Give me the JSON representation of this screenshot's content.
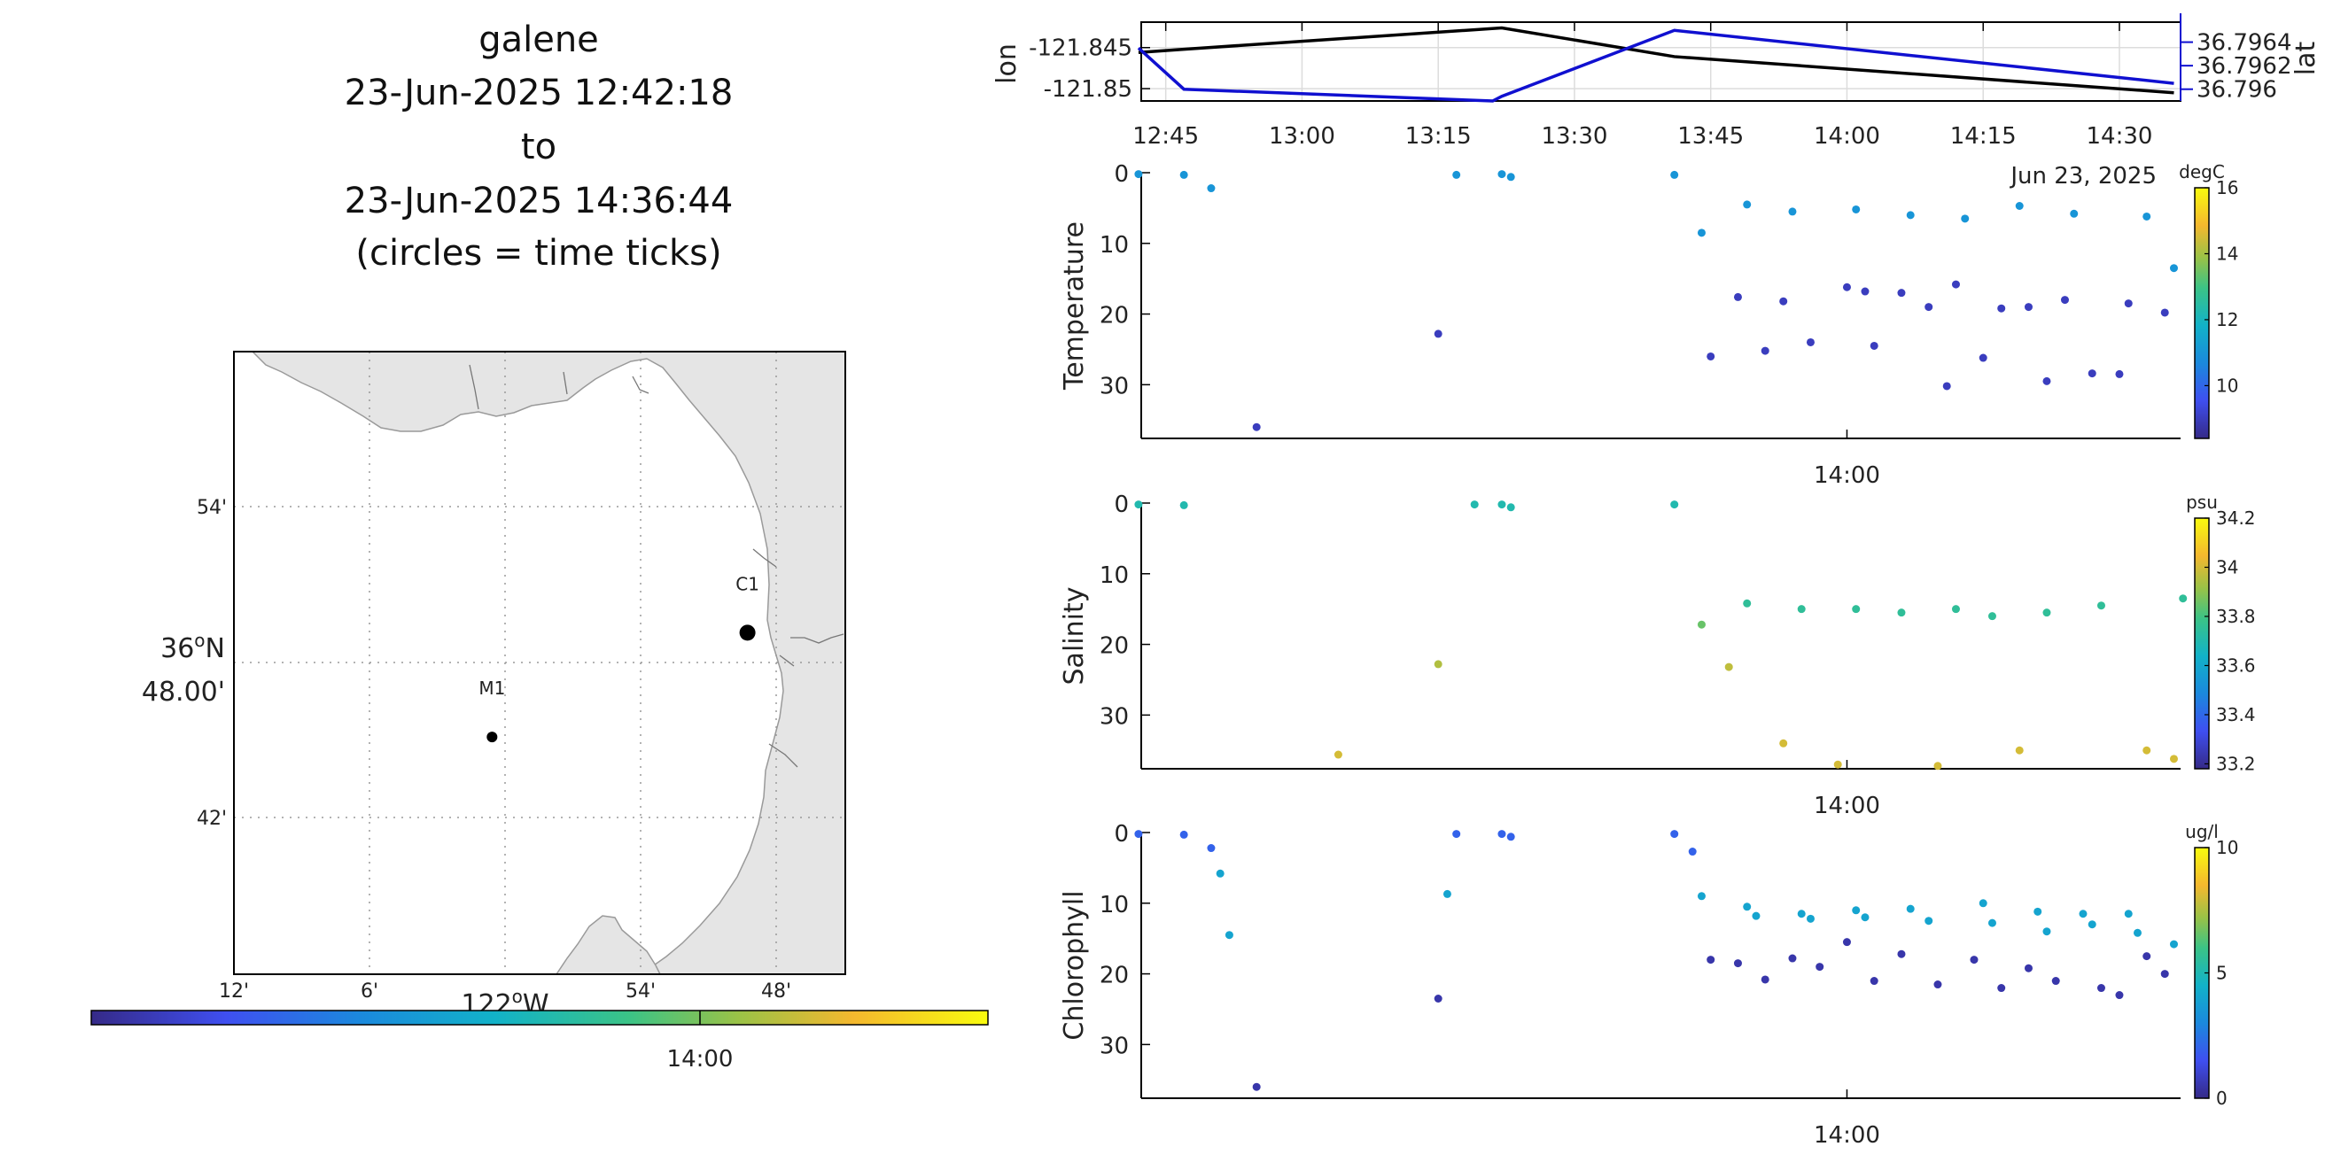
{
  "title": {
    "lines": [
      "galene",
      "23-Jun-2025 12:42:18",
      "to",
      "23-Jun-2025 14:36:44",
      "(circles = time ticks)"
    ]
  },
  "map": {
    "lon_ticks": [
      "12'",
      "6'",
      "54'",
      "48'"
    ],
    "lon_degree_label": "122",
    "lon_degree_suffix": "W",
    "lat_ticks": [
      "54'",
      "42'"
    ],
    "lat_degree_label": "36",
    "lat_degree_suffix": "N",
    "lat_minutes_label": "48.00'",
    "stations": [
      {
        "name": "M1",
        "lon": -122.01,
        "lat": 36.747
      },
      {
        "name": "C1",
        "lon": -121.822,
        "lat": 36.797
      }
    ],
    "colorbar_tick": "14:00",
    "colors": {
      "land": "#e5e5e5",
      "coast": "#9a9a9a",
      "grid": "#9a9a9a"
    }
  },
  "track_chart": {
    "type": "line",
    "left_axis": {
      "label": "lon",
      "ticks": [
        "-121.845",
        "-121.85"
      ],
      "range": [
        -121.8515,
        -121.8419
      ]
    },
    "right_axis": {
      "label": "lat",
      "ticks": [
        "36.7964",
        "36.7962",
        "36.796"
      ],
      "range": [
        36.7959,
        36.79657
      ]
    },
    "x_ticks": [
      "12:45",
      "13:00",
      "13:15",
      "13:30",
      "13:45",
      "14:00",
      "14:15",
      "14:30"
    ],
    "x_date_label": "Jun 23, 2025",
    "lon_series": [
      {
        "t": "12:42",
        "v": -121.8456
      },
      {
        "t": "12:47",
        "v": -121.8452
      },
      {
        "t": "13:22",
        "v": -121.8426
      },
      {
        "t": "13:41",
        "v": -121.8461
      },
      {
        "t": "14:36",
        "v": -121.8505
      }
    ],
    "lat_series": [
      {
        "t": "12:42",
        "v": 36.79635
      },
      {
        "t": "12:47",
        "v": 36.796
      },
      {
        "t": "13:21",
        "v": 36.7959
      },
      {
        "t": "13:22",
        "v": 36.79594
      },
      {
        "t": "13:41",
        "v": 36.7965
      },
      {
        "t": "14:36",
        "v": 36.79605
      }
    ],
    "colors": {
      "lon": "#000000",
      "lat": "#1010d0"
    }
  },
  "chart_data": [
    {
      "type": "scatter",
      "ylabel": "Temperature",
      "units": "degC",
      "x_tick": "14:00",
      "y_ticks": [
        "0",
        "10",
        "20",
        "30"
      ],
      "ylim": [
        37.6,
        0
      ],
      "cbar_ticks": [
        "16",
        "14",
        "12",
        "10"
      ],
      "cbar_range": [
        8.4,
        16
      ],
      "points": [
        {
          "t": "12:42",
          "d": 0.2,
          "v": 11
        },
        {
          "t": "12:47",
          "d": 0.3,
          "v": 11
        },
        {
          "t": "12:50",
          "d": 2.2,
          "v": 11
        },
        {
          "t": "12:55",
          "d": 36,
          "v": 9
        },
        {
          "t": "13:15",
          "d": 22.8,
          "v": 9
        },
        {
          "t": "13:17",
          "d": 0.3,
          "v": 11
        },
        {
          "t": "13:22",
          "d": 0.2,
          "v": 11
        },
        {
          "t": "13:23",
          "d": 0.6,
          "v": 11
        },
        {
          "t": "13:41",
          "d": 0.3,
          "v": 11
        },
        {
          "t": "13:44",
          "d": 8.5,
          "v": 11
        },
        {
          "t": "13:45",
          "d": 26,
          "v": 9
        },
        {
          "t": "13:48",
          "d": 17.6,
          "v": 9
        },
        {
          "t": "13:49",
          "d": 4.5,
          "v": 11
        },
        {
          "t": "13:51",
          "d": 25.2,
          "v": 9
        },
        {
          "t": "13:53",
          "d": 18.2,
          "v": 9
        },
        {
          "t": "13:54",
          "d": 5.5,
          "v": 11
        },
        {
          "t": "13:56",
          "d": 24,
          "v": 9
        },
        {
          "t": "14:00",
          "d": 16.2,
          "v": 9
        },
        {
          "t": "14:01",
          "d": 5.2,
          "v": 11
        },
        {
          "t": "14:02",
          "d": 16.8,
          "v": 9
        },
        {
          "t": "14:03",
          "d": 24.5,
          "v": 9
        },
        {
          "t": "14:06",
          "d": 17,
          "v": 9
        },
        {
          "t": "14:07",
          "d": 6,
          "v": 11
        },
        {
          "t": "14:09",
          "d": 19,
          "v": 9
        },
        {
          "t": "14:11",
          "d": 30.2,
          "v": 9
        },
        {
          "t": "14:12",
          "d": 15.8,
          "v": 9
        },
        {
          "t": "14:13",
          "d": 6.5,
          "v": 11
        },
        {
          "t": "14:15",
          "d": 26.2,
          "v": 9
        },
        {
          "t": "14:17",
          "d": 19.2,
          "v": 9
        },
        {
          "t": "14:19",
          "d": 4.7,
          "v": 11
        },
        {
          "t": "14:20",
          "d": 19,
          "v": 9
        },
        {
          "t": "14:22",
          "d": 29.5,
          "v": 9
        },
        {
          "t": "14:24",
          "d": 18,
          "v": 9
        },
        {
          "t": "14:25",
          "d": 5.8,
          "v": 11
        },
        {
          "t": "14:27",
          "d": 28.4,
          "v": 9
        },
        {
          "t": "14:30",
          "d": 28.5,
          "v": 9
        },
        {
          "t": "14:31",
          "d": 18.5,
          "v": 9
        },
        {
          "t": "14:33",
          "d": 6.2,
          "v": 11
        },
        {
          "t": "14:35",
          "d": 19.8,
          "v": 9
        },
        {
          "t": "14:36",
          "d": 13.5,
          "v": 11
        }
      ]
    },
    {
      "type": "scatter",
      "ylabel": "Salinity",
      "units": "psu",
      "x_tick": "14:00",
      "y_ticks": [
        "0",
        "10",
        "20",
        "30"
      ],
      "ylim": [
        37.6,
        0
      ],
      "cbar_ticks": [
        "34.2",
        "34",
        "33.8",
        "33.6",
        "33.4",
        "33.2"
      ],
      "cbar_range": [
        33.18,
        34.2
      ],
      "points": [
        {
          "t": "12:42",
          "d": 0.2,
          "v": 33.7
        },
        {
          "t": "12:47",
          "d": 0.3,
          "v": 33.7
        },
        {
          "t": "13:04",
          "d": 35.6,
          "v": 34.0
        },
        {
          "t": "13:15",
          "d": 22.8,
          "v": 33.95
        },
        {
          "t": "13:19",
          "d": 0.2,
          "v": 33.7
        },
        {
          "t": "13:22",
          "d": 0.2,
          "v": 33.7
        },
        {
          "t": "13:23",
          "d": 0.6,
          "v": 33.7
        },
        {
          "t": "13:41",
          "d": 0.2,
          "v": 33.7
        },
        {
          "t": "13:44",
          "d": 17.2,
          "v": 33.85
        },
        {
          "t": "13:47",
          "d": 23.2,
          "v": 33.97
        },
        {
          "t": "13:49",
          "d": 14.2,
          "v": 33.75
        },
        {
          "t": "13:53",
          "d": 34,
          "v": 34.0
        },
        {
          "t": "13:55",
          "d": 15,
          "v": 33.75
        },
        {
          "t": "13:59",
          "d": 37,
          "v": 34.0
        },
        {
          "t": "14:01",
          "d": 15,
          "v": 33.75
        },
        {
          "t": "14:06",
          "d": 15.5,
          "v": 33.75
        },
        {
          "t": "14:10",
          "d": 37.2,
          "v": 34.0
        },
        {
          "t": "14:12",
          "d": 15,
          "v": 33.75
        },
        {
          "t": "14:16",
          "d": 16,
          "v": 33.75
        },
        {
          "t": "14:19",
          "d": 35,
          "v": 34.0
        },
        {
          "t": "14:22",
          "d": 15.5,
          "v": 33.75
        },
        {
          "t": "14:28",
          "d": 14.5,
          "v": 33.75
        },
        {
          "t": "14:33",
          "d": 35,
          "v": 34.0
        },
        {
          "t": "14:36",
          "d": 36.2,
          "v": 34.0
        },
        {
          "t": "14:37",
          "d": 13.5,
          "v": 33.75
        }
      ]
    },
    {
      "type": "scatter",
      "ylabel": "Chlorophyll",
      "units": "ug/l",
      "x_tick": "14:00",
      "y_ticks": [
        "0",
        "10",
        "20",
        "30"
      ],
      "ylim": [
        37.6,
        0
      ],
      "cbar_ticks": [
        "10",
        "5",
        "0"
      ],
      "cbar_range": [
        0,
        10
      ],
      "points": [
        {
          "t": "12:42",
          "d": 0.2,
          "v": 2
        },
        {
          "t": "12:47",
          "d": 0.3,
          "v": 2
        },
        {
          "t": "12:50",
          "d": 2.2,
          "v": 2
        },
        {
          "t": "12:51",
          "d": 5.8,
          "v": 4
        },
        {
          "t": "12:52",
          "d": 14.5,
          "v": 4
        },
        {
          "t": "12:55",
          "d": 36,
          "v": 0.5
        },
        {
          "t": "13:15",
          "d": 23.5,
          "v": 0.5
        },
        {
          "t": "13:16",
          "d": 8.7,
          "v": 4
        },
        {
          "t": "13:17",
          "d": 0.2,
          "v": 2
        },
        {
          "t": "13:22",
          "d": 0.2,
          "v": 2
        },
        {
          "t": "13:23",
          "d": 0.6,
          "v": 2
        },
        {
          "t": "13:41",
          "d": 0.2,
          "v": 2
        },
        {
          "t": "13:43",
          "d": 2.7,
          "v": 2
        },
        {
          "t": "13:44",
          "d": 9,
          "v": 4
        },
        {
          "t": "13:45",
          "d": 18,
          "v": 0.5
        },
        {
          "t": "13:48",
          "d": 18.5,
          "v": 0.5
        },
        {
          "t": "13:49",
          "d": 10.5,
          "v": 4
        },
        {
          "t": "13:50",
          "d": 11.8,
          "v": 4
        },
        {
          "t": "13:51",
          "d": 20.8,
          "v": 0.5
        },
        {
          "t": "13:54",
          "d": 17.8,
          "v": 0.5
        },
        {
          "t": "13:55",
          "d": 11.5,
          "v": 4
        },
        {
          "t": "13:56",
          "d": 12.2,
          "v": 4
        },
        {
          "t": "13:57",
          "d": 19,
          "v": 0.5
        },
        {
          "t": "14:00",
          "d": 15.5,
          "v": 0.5
        },
        {
          "t": "14:01",
          "d": 11,
          "v": 4
        },
        {
          "t": "14:02",
          "d": 12,
          "v": 4
        },
        {
          "t": "14:03",
          "d": 21,
          "v": 0.5
        },
        {
          "t": "14:06",
          "d": 17.2,
          "v": 0.5
        },
        {
          "t": "14:07",
          "d": 10.8,
          "v": 4
        },
        {
          "t": "14:09",
          "d": 12.5,
          "v": 4
        },
        {
          "t": "14:10",
          "d": 21.5,
          "v": 0.5
        },
        {
          "t": "14:14",
          "d": 18,
          "v": 0.5
        },
        {
          "t": "14:15",
          "d": 10,
          "v": 4
        },
        {
          "t": "14:16",
          "d": 12.8,
          "v": 4
        },
        {
          "t": "14:17",
          "d": 22,
          "v": 0.5
        },
        {
          "t": "14:20",
          "d": 19.2,
          "v": 0.5
        },
        {
          "t": "14:21",
          "d": 11.2,
          "v": 4
        },
        {
          "t": "14:22",
          "d": 14,
          "v": 4
        },
        {
          "t": "14:23",
          "d": 21,
          "v": 0.5
        },
        {
          "t": "14:26",
          "d": 11.5,
          "v": 4
        },
        {
          "t": "14:27",
          "d": 13,
          "v": 4
        },
        {
          "t": "14:28",
          "d": 22,
          "v": 0.5
        },
        {
          "t": "14:30",
          "d": 23,
          "v": 0.5
        },
        {
          "t": "14:31",
          "d": 11.5,
          "v": 4
        },
        {
          "t": "14:32",
          "d": 14.2,
          "v": 4
        },
        {
          "t": "14:33",
          "d": 17.5,
          "v": 0.5
        },
        {
          "t": "14:35",
          "d": 20,
          "v": 0.5
        },
        {
          "t": "14:36",
          "d": 15.8,
          "v": 4
        }
      ]
    }
  ]
}
